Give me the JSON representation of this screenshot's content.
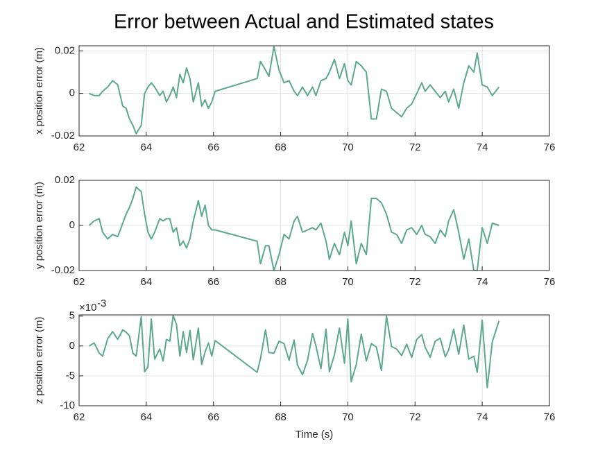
{
  "title": "Error between Actual and Estimated states",
  "chart_data": [
    {
      "type": "line",
      "ylabel": "x position error (m)",
      "color": "#5aa98b",
      "grid": true,
      "xlim": [
        62,
        76
      ],
      "xticks": [
        62,
        64,
        66,
        68,
        70,
        72,
        74,
        76
      ],
      "ylim": [
        -0.02,
        0.0224
      ],
      "yticks": [
        -0.02,
        0,
        0.02
      ],
      "x": [
        62.3,
        62.45,
        62.6,
        62.7,
        62.85,
        63.0,
        63.15,
        63.3,
        63.4,
        63.5,
        63.6,
        63.7,
        63.85,
        63.95,
        64.05,
        64.15,
        64.25,
        64.4,
        64.5,
        64.6,
        64.7,
        64.8,
        64.9,
        65.0,
        65.1,
        65.2,
        65.3,
        65.4,
        65.55,
        65.65,
        65.75,
        65.85,
        65.95,
        66.05,
        67.3,
        67.4,
        67.55,
        67.65,
        67.8,
        67.95,
        68.1,
        68.25,
        68.4,
        68.5,
        68.65,
        68.8,
        68.95,
        69.05,
        69.2,
        69.35,
        69.45,
        69.6,
        69.75,
        69.9,
        70.0,
        70.1,
        70.25,
        70.4,
        70.55,
        70.7,
        70.85,
        71.0,
        71.15,
        71.3,
        71.45,
        71.6,
        71.75,
        71.9,
        72.05,
        72.2,
        72.3,
        72.45,
        72.6,
        72.75,
        72.9,
        73.0,
        73.15,
        73.3,
        73.45,
        73.6,
        73.75,
        73.85,
        74.0,
        74.15,
        74.3,
        74.5
      ],
      "values": [
        0,
        -0.001,
        -0.001,
        0.001,
        0.003,
        0.006,
        0.004,
        -0.006,
        -0.007,
        -0.012,
        -0.015,
        -0.019,
        -0.015,
        0,
        0.003,
        0.005,
        0.003,
        -0.001,
        0.001,
        -0.004,
        -0.001,
        0.003,
        -0.002,
        0.009,
        0.005,
        0.012,
        0.007,
        -0.004,
        0.005,
        -0.006,
        -0.003,
        -0.007,
        -0.004,
        0.001,
        0.007,
        0.015,
        0.011,
        0.008,
        0.022,
        0.011,
        0.005,
        0.006,
        0.001,
        -0.001,
        0.003,
        -0.001,
        0.003,
        -0.001,
        0.006,
        0.007,
        0.01,
        0.016,
        0.007,
        0.014,
        0.006,
        0.004,
        0.015,
        0.013,
        0.01,
        -0.012,
        -0.012,
        0.002,
        0.001,
        -0.007,
        -0.009,
        -0.011,
        -0.007,
        -0.005,
        0,
        0.005,
        0.001,
        0.004,
        0.001,
        -0.002,
        0.001,
        -0.004,
        0.002,
        -0.007,
        0.005,
        0.013,
        0.01,
        0.019,
        0.004,
        0.003,
        -0.001,
        0.003
      ]
    },
    {
      "type": "line",
      "ylabel": "y position error (m)",
      "color": "#5aa98b",
      "grid": true,
      "xlim": [
        62,
        76
      ],
      "xticks": [
        62,
        64,
        66,
        68,
        70,
        72,
        74,
        76
      ],
      "ylim": [
        -0.02,
        0.02
      ],
      "yticks": [
        -0.02,
        0,
        0.02
      ],
      "x": [
        62.3,
        62.45,
        62.6,
        62.7,
        62.85,
        63.0,
        63.15,
        63.3,
        63.4,
        63.5,
        63.6,
        63.7,
        63.85,
        63.95,
        64.05,
        64.15,
        64.25,
        64.4,
        64.5,
        64.6,
        64.7,
        64.8,
        64.9,
        65.0,
        65.1,
        65.2,
        65.3,
        65.4,
        65.55,
        65.65,
        65.75,
        65.85,
        65.95,
        66.05,
        67.3,
        67.4,
        67.55,
        67.65,
        67.8,
        67.95,
        68.1,
        68.25,
        68.4,
        68.5,
        68.65,
        68.8,
        68.95,
        69.05,
        69.2,
        69.35,
        69.45,
        69.6,
        69.75,
        69.9,
        70.0,
        70.1,
        70.25,
        70.4,
        70.55,
        70.7,
        70.85,
        71.0,
        71.15,
        71.3,
        71.45,
        71.6,
        71.75,
        71.9,
        72.05,
        72.2,
        72.3,
        72.45,
        72.6,
        72.75,
        72.9,
        73.0,
        73.15,
        73.3,
        73.45,
        73.6,
        73.75,
        73.85,
        74.0,
        74.15,
        74.3,
        74.5
      ],
      "values": [
        0,
        0.002,
        0.003,
        -0.003,
        -0.006,
        -0.004,
        -0.005,
        0.001,
        0.005,
        0.008,
        0.012,
        0.017,
        0.015,
        0.005,
        -0.003,
        -0.006,
        -0.003,
        0.003,
        0.002,
        0.003,
        0.003,
        -0.003,
        -0.001,
        -0.009,
        -0.007,
        -0.01,
        -0.006,
        0.002,
        0.011,
        0.004,
        0.009,
        0,
        -0.002,
        -0.002,
        -0.007,
        -0.017,
        -0.009,
        -0.009,
        -0.02,
        -0.013,
        -0.004,
        -0.006,
        0.002,
        0.004,
        -0.003,
        -0.002,
        -0.001,
        -0.002,
        0.001,
        -0.007,
        -0.015,
        -0.008,
        -0.013,
        -0.003,
        -0.009,
        0.002,
        -0.017,
        -0.008,
        -0.013,
        0.012,
        0.012,
        0.01,
        0.005,
        -0.003,
        -0.004,
        -0.008,
        -0.002,
        -0.001,
        -0.004,
        0,
        -0.004,
        -0.005,
        -0.008,
        -0.002,
        -0.005,
        0.002,
        0.007,
        -0.003,
        -0.015,
        -0.006,
        -0.02,
        -0.02,
        -0.001,
        -0.008,
        0.001,
        0
      ]
    },
    {
      "type": "line",
      "ylabel": "z position error (m)",
      "xlabel": "Time (s)",
      "color": "#5aa98b",
      "grid": true,
      "y_exponent": {
        "base": "×10",
        "power": "-3"
      },
      "xlim": [
        62,
        76
      ],
      "xticks": [
        62,
        64,
        66,
        68,
        70,
        72,
        74,
        76
      ],
      "ylim": [
        -10,
        5.2
      ],
      "yticks": [
        -10,
        -5,
        0,
        5
      ],
      "x": [
        62.3,
        62.45,
        62.6,
        62.7,
        62.85,
        63.0,
        63.15,
        63.3,
        63.4,
        63.5,
        63.6,
        63.7,
        63.85,
        63.95,
        64.05,
        64.15,
        64.25,
        64.4,
        64.5,
        64.6,
        64.7,
        64.8,
        64.9,
        65.0,
        65.1,
        65.2,
        65.3,
        65.4,
        65.55,
        65.65,
        65.75,
        65.85,
        65.95,
        66.05,
        67.3,
        67.4,
        67.55,
        67.65,
        67.8,
        67.95,
        68.1,
        68.25,
        68.4,
        68.5,
        68.65,
        68.8,
        68.95,
        69.05,
        69.2,
        69.35,
        69.45,
        69.6,
        69.75,
        69.9,
        70.0,
        70.1,
        70.25,
        70.4,
        70.55,
        70.7,
        70.85,
        71.0,
        71.15,
        71.3,
        71.45,
        71.6,
        71.75,
        71.9,
        72.05,
        72.2,
        72.3,
        72.45,
        72.6,
        72.75,
        72.9,
        73.0,
        73.15,
        73.3,
        73.45,
        73.6,
        73.75,
        73.85,
        74.0,
        74.15,
        74.3,
        74.5
      ],
      "values": [
        0,
        0.5,
        -1.2,
        -1.7,
        1.2,
        2.4,
        1.1,
        2.7,
        2.3,
        1.7,
        -1.2,
        -1.7,
        4.9,
        -4.3,
        -3.5,
        4.5,
        -2.2,
        -0.5,
        -2.5,
        1.1,
        0.8,
        5.1,
        3.6,
        -1.7,
        2.4,
        -1.1,
        2.6,
        -2.3,
        3.0,
        -3.1,
        -1.0,
        0.5,
        -1.7,
        0.9,
        -4.4,
        -2.1,
        2.7,
        -1.1,
        -1.2,
        0.8,
        0.4,
        -2.4,
        1.0,
        -3.2,
        -4.8,
        -2.4,
        2.1,
        0,
        -3.8,
        2.8,
        -4.3,
        -1.5,
        3.0,
        -2.9,
        4.5,
        -6.0,
        -3.1,
        2.0,
        -2.5,
        0.4,
        -0.2,
        -4.1,
        5.0,
        -0.1,
        -0.5,
        -1.6,
        0.3,
        -1.9,
        1.1,
        1.9,
        -0.2,
        -1.9,
        0.8,
        1.3,
        -1.8,
        -0.7,
        2.8,
        -1.4,
        3.5,
        -2.2,
        -1.7,
        -4.4,
        4.3,
        -7.0,
        0.7,
        4.2
      ]
    }
  ]
}
